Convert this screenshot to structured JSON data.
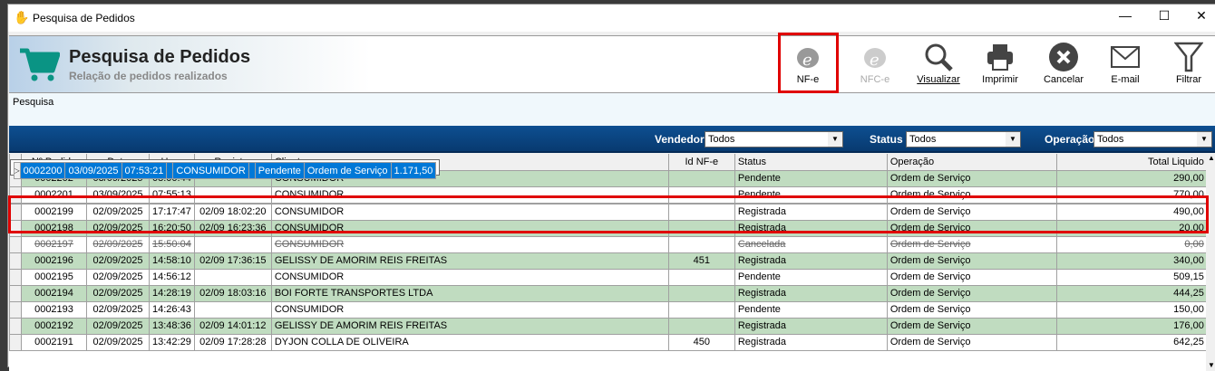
{
  "window": {
    "title": "Pesquisa de Pedidos",
    "controls": [
      "minimize",
      "maximize",
      "close"
    ]
  },
  "header": {
    "title": "Pesquisa de Pedidos",
    "subtitle": "Relação de pedidos realizados",
    "icon": "shopping-cart-icon"
  },
  "toolbar": [
    {
      "label": "NF-e",
      "icon": "nfe-icon",
      "enabled": true,
      "highlighted": true
    },
    {
      "label": "NFC-e",
      "icon": "nfce-icon",
      "enabled": false
    },
    {
      "label": "Visualizar",
      "icon": "magnifier-icon",
      "enabled": true
    },
    {
      "label": "Imprimir",
      "icon": "printer-icon",
      "enabled": true
    },
    {
      "label": "Cancelar",
      "icon": "cancel-icon",
      "enabled": true
    },
    {
      "label": "E-mail",
      "icon": "envelope-icon",
      "enabled": true
    },
    {
      "label": "Filtrar",
      "icon": "funnel-icon",
      "enabled": true
    }
  ],
  "panel": {
    "label": "Pesquisa"
  },
  "filters": {
    "vendedor": {
      "label": "Vendedor",
      "value": "Todos"
    },
    "status": {
      "label": "Status",
      "value": "Todos"
    },
    "operacao": {
      "label": "Operação",
      "value": "Todos"
    }
  },
  "grid": {
    "columns": [
      "Nº Pedido",
      "Data",
      "Hora",
      "Registro",
      "Cliente",
      "Id NF-e",
      "Status",
      "Operação",
      "Total Liquido"
    ],
    "selected_index": 2,
    "rows": [
      {
        "pedido": "0002202",
        "data": "03/09/2025",
        "hora": "08:00:44",
        "registro": "",
        "cliente": "CONSUMIDOR",
        "idnfe": "",
        "status": "Pendente",
        "operacao": "Ordem de Serviço",
        "total": "290,00"
      },
      {
        "pedido": "0002201",
        "data": "03/09/2025",
        "hora": "07:55:13",
        "registro": "",
        "cliente": "CONSUMIDOR",
        "idnfe": "",
        "status": "Pendente",
        "operacao": "Ordem de Serviço",
        "total": "770,00"
      },
      {
        "pedido": "0002200",
        "data": "03/09/2025",
        "hora": "07:53:21",
        "registro": "",
        "cliente": "CONSUMIDOR",
        "idnfe": "",
        "status": "Pendente",
        "operacao": "Ordem de Serviço",
        "total": "1.171,50"
      },
      {
        "pedido": "0002199",
        "data": "02/09/2025",
        "hora": "17:17:47",
        "registro": "02/09 18:02:20",
        "cliente": "CONSUMIDOR",
        "idnfe": "",
        "status": "Registrada",
        "operacao": "Ordem de Serviço",
        "total": "490,00"
      },
      {
        "pedido": "0002198",
        "data": "02/09/2025",
        "hora": "16:20:50",
        "registro": "02/09 16:23:36",
        "cliente": "CONSUMIDOR",
        "idnfe": "",
        "status": "Registrada",
        "operacao": "Ordem de Serviço",
        "total": "20,00"
      },
      {
        "pedido": "0002197",
        "data": "02/09/2025",
        "hora": "15:50:04",
        "registro": "",
        "cliente": "CONSUMIDOR",
        "idnfe": "",
        "status": "Cancelada",
        "operacao": "Ordem de Serviço",
        "total": "0,00"
      },
      {
        "pedido": "0002196",
        "data": "02/09/2025",
        "hora": "14:58:10",
        "registro": "02/09 17:36:15",
        "cliente": "GELISSY DE AMORIM REIS FREITAS",
        "idnfe": "451",
        "status": "Registrada",
        "operacao": "Ordem de Serviço",
        "total": "340,00"
      },
      {
        "pedido": "0002195",
        "data": "02/09/2025",
        "hora": "14:56:12",
        "registro": "",
        "cliente": "CONSUMIDOR",
        "idnfe": "",
        "status": "Pendente",
        "operacao": "Ordem de Serviço",
        "total": "509,15"
      },
      {
        "pedido": "0002194",
        "data": "02/09/2025",
        "hora": "14:28:19",
        "registro": "02/09 18:03:16",
        "cliente": "BOI FORTE TRANSPORTES LTDA",
        "idnfe": "",
        "status": "Registrada",
        "operacao": "Ordem de Serviço",
        "total": "444,25"
      },
      {
        "pedido": "0002193",
        "data": "02/09/2025",
        "hora": "14:26:43",
        "registro": "",
        "cliente": "CONSUMIDOR",
        "idnfe": "",
        "status": "Pendente",
        "operacao": "Ordem de Serviço",
        "total": "150,00"
      },
      {
        "pedido": "0002192",
        "data": "02/09/2025",
        "hora": "13:48:36",
        "registro": "02/09 14:01:12",
        "cliente": "GELISSY DE AMORIM REIS FREITAS",
        "idnfe": "",
        "status": "Registrada",
        "operacao": "Ordem de Serviço",
        "total": "176,00"
      },
      {
        "pedido": "0002191",
        "data": "02/09/2025",
        "hora": "13:42:29",
        "registro": "02/09 17:28:28",
        "cliente": "DYJON COLLA DE OLIVEIRA",
        "idnfe": "450",
        "status": "Registrada",
        "operacao": "Ordem de Serviço",
        "total": "642,25"
      }
    ]
  },
  "colors": {
    "row_alt": "#c0dcc0",
    "selected": "#0078d7",
    "filter_bar": "#0d4f91",
    "highlight": "#e00000",
    "cart": "#0a9484"
  }
}
